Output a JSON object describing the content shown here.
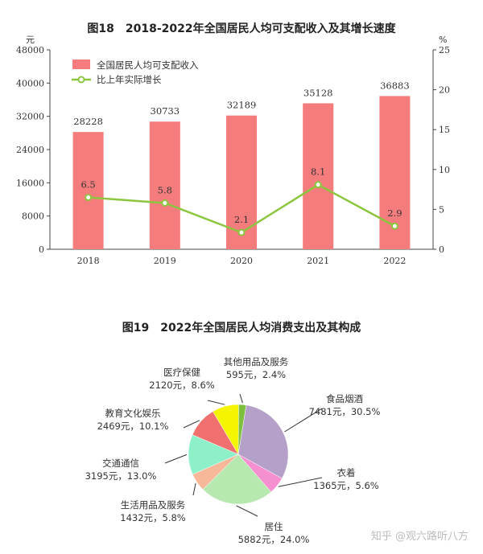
{
  "watermark": "知乎 @观六路听八方",
  "chart_data": [
    {
      "type": "bar",
      "title": "图18　2018-2022年全国居民人均可支配收入及其增长速度",
      "categories": [
        "2018",
        "2019",
        "2020",
        "2021",
        "2022"
      ],
      "y_unit_left": "元",
      "y_unit_right": "%",
      "ylim_left": [
        0,
        48000
      ],
      "yticks_left": [
        "0",
        "8000",
        "16000",
        "24000",
        "32000",
        "40000",
        "48000"
      ],
      "ylim_right": [
        0,
        25
      ],
      "yticks_right": [
        "0",
        "5",
        "10",
        "15",
        "20",
        "25"
      ],
      "series": [
        {
          "name": "全国居民人均可支配收入",
          "kind": "bar",
          "axis": "left",
          "color": "#f47c7c",
          "values": [
            28228,
            30733,
            32189,
            35128,
            36883
          ],
          "labels": [
            "28228",
            "30733",
            "32189",
            "35128",
            "36883"
          ]
        },
        {
          "name": "比上年实际增长",
          "kind": "line",
          "axis": "right",
          "color": "#8cc63f",
          "values": [
            6.5,
            5.8,
            2.1,
            8.1,
            2.9
          ],
          "labels": [
            "6.5",
            "5.8",
            "2.1",
            "8.1",
            "2.9"
          ]
        }
      ],
      "legend_position": "top-left",
      "grid": false
    },
    {
      "type": "pie",
      "title": "图19　2022年全国居民人均消费支出及其构成",
      "slices": [
        {
          "name": "食品烟酒",
          "value": 7481,
          "percent": 30.5,
          "text": "7481元，30.5%",
          "color": "#b4a0c8"
        },
        {
          "name": "衣着",
          "value": 1365,
          "percent": 5.6,
          "text": "1365元，5.6%",
          "color": "#f58fd0"
        },
        {
          "name": "居住",
          "value": 5882,
          "percent": 24.0,
          "text": "5882元，24.0%",
          "color": "#b7e8b0"
        },
        {
          "name": "生活用品及服务",
          "value": 1432,
          "percent": 5.8,
          "text": "1432元，5.8%",
          "color": "#f7b89a"
        },
        {
          "name": "交通通信",
          "value": 3195,
          "percent": 13.0,
          "text": "3195元，13.0%",
          "color": "#8ef0c8"
        },
        {
          "name": "教育文化娱乐",
          "value": 2469,
          "percent": 10.1,
          "text": "2469元，10.1%",
          "color": "#f07070"
        },
        {
          "name": "医疗保健",
          "value": 2120,
          "percent": 8.6,
          "text": "2120元，8.6%",
          "color": "#f5f500"
        },
        {
          "name": "其他用品及服务",
          "value": 595,
          "percent": 2.4,
          "text": "595元，2.4%",
          "color": "#7fbf3f"
        }
      ]
    }
  ]
}
